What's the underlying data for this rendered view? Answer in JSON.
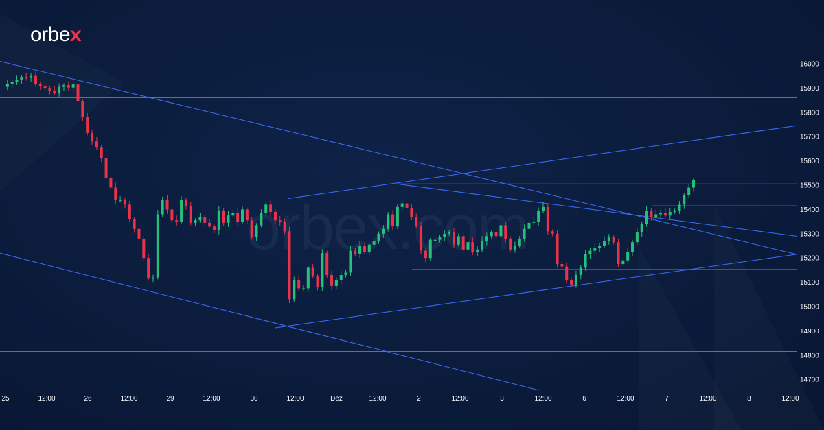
{
  "logo": {
    "text": "orbe",
    "accent": "x",
    "accent_color": "#e8334a"
  },
  "watermark": "orbex.com",
  "colors": {
    "background": "#0b1c3c",
    "up": "#26c07a",
    "down": "#e8334a",
    "lines": "#3d6dff",
    "text": "#ffffff"
  },
  "chart_data": {
    "type": "candlestick",
    "title": "",
    "ylim": [
      14650,
      16050
    ],
    "y_ticks": [
      16000,
      15900,
      15800,
      15700,
      15600,
      15500,
      15400,
      15300,
      15200,
      15100,
      15000,
      14900,
      14800,
      14700
    ],
    "x_ticks": [
      "25",
      "12:00",
      "26",
      "12:00",
      "29",
      "12:00",
      "30",
      "12:00",
      "Dez",
      "12:00",
      "2",
      "12:00",
      "3",
      "12:00",
      "6",
      "12:00",
      "7",
      "12:00",
      "8",
      "12:00"
    ],
    "grid": false,
    "close_series": [
      15905,
      15918,
      15925,
      15935,
      15945,
      15942,
      15950,
      15915,
      15908,
      15898,
      15888,
      15878,
      15905,
      15912,
      15902,
      15915,
      15845,
      15780,
      15715,
      15680,
      15655,
      15610,
      15530,
      15490,
      15440,
      15440,
      15420,
      15360,
      15320,
      15280,
      15200,
      15115,
      15120,
      15380,
      15440,
      15400,
      15355,
      15350,
      15440,
      15415,
      15345,
      15355,
      15370,
      15345,
      15330,
      15315,
      15395,
      15345,
      15375,
      15385,
      15350,
      15400,
      15355,
      15285,
      15335,
      15385,
      15420,
      15390,
      15355,
      15350,
      15310,
      15030,
      15110,
      15075,
      15075,
      15160,
      15125,
      15080,
      15220,
      15130,
      15085,
      15110,
      15130,
      15140,
      15230,
      15215,
      15250,
      15225,
      15255,
      15270,
      15300,
      15320,
      15380,
      15330,
      15410,
      15425,
      15405,
      15370,
      15330,
      15230,
      15200,
      15275,
      15275,
      15285,
      15300,
      15305,
      15255,
      15290,
      15235,
      15265,
      15225,
      15235,
      15270,
      15290,
      15305,
      15290,
      15335,
      15280,
      15235,
      15250,
      15280,
      15320,
      15345,
      15350,
      15395,
      15410,
      15310,
      15300,
      15175,
      15165,
      15110,
      15090,
      15130,
      15160,
      15215,
      15230,
      15240,
      15250,
      15270,
      15285,
      15265,
      15175,
      15190,
      15225,
      15265,
      15305,
      15340,
      15395,
      15370,
      15380,
      15385,
      15375,
      15390,
      15395,
      15420,
      15460,
      15490,
      15520
    ]
  }
}
